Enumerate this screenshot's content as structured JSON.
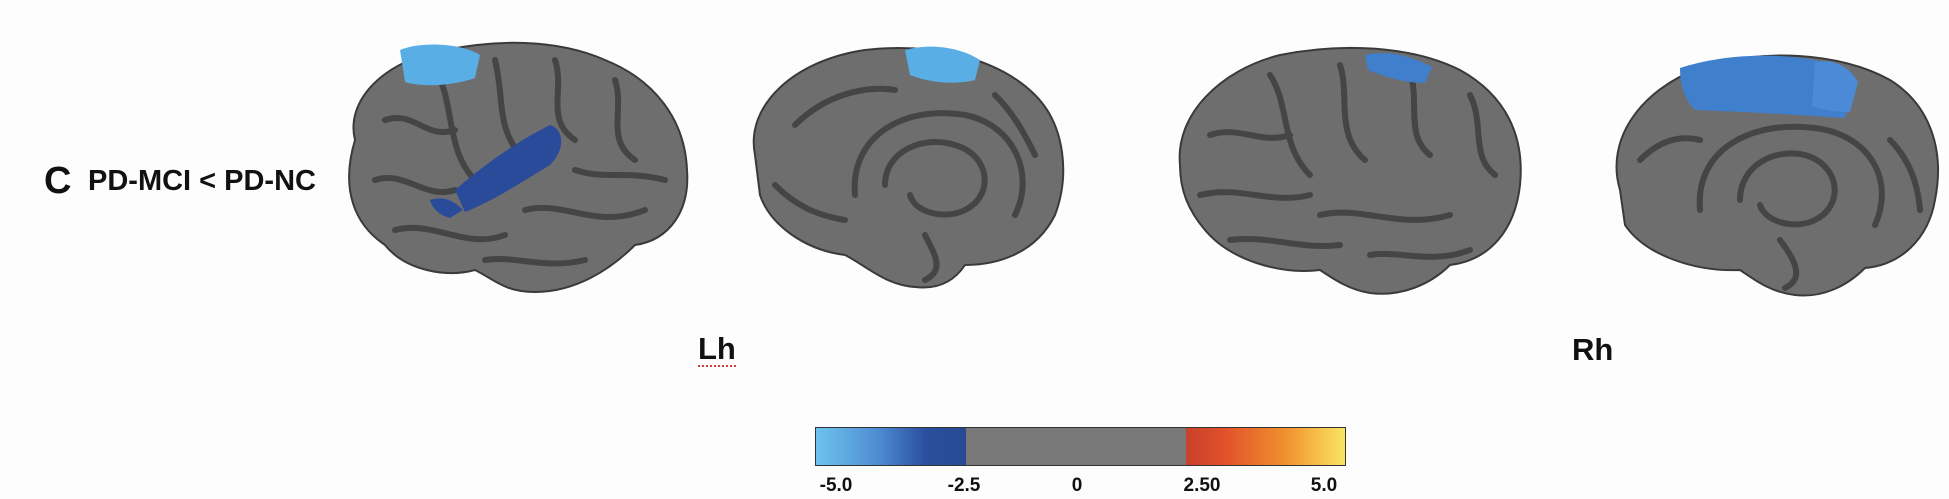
{
  "panel": {
    "letter": "C",
    "title": "PD-MCI < PD-NC"
  },
  "hemispheres": {
    "left_label": "Lh",
    "right_label": "Rh"
  },
  "colorbar": {
    "ticks": [
      "-5.0",
      "-2.5",
      "0",
      "2.50",
      "5.0"
    ],
    "colors": {
      "light_blue": "#6ec3ef",
      "dark_blue": "#274a93",
      "neutral_gray": "#787878",
      "red": "#c9412a",
      "yellow": "#fbe562"
    }
  },
  "brain_colors": {
    "cortex": "#6e6e6e",
    "sulcus": "#4a4a4a",
    "cluster_light": "#5aaee6",
    "cluster_mid": "#3f7fcc",
    "cluster_dark": "#2a4a9a"
  }
}
